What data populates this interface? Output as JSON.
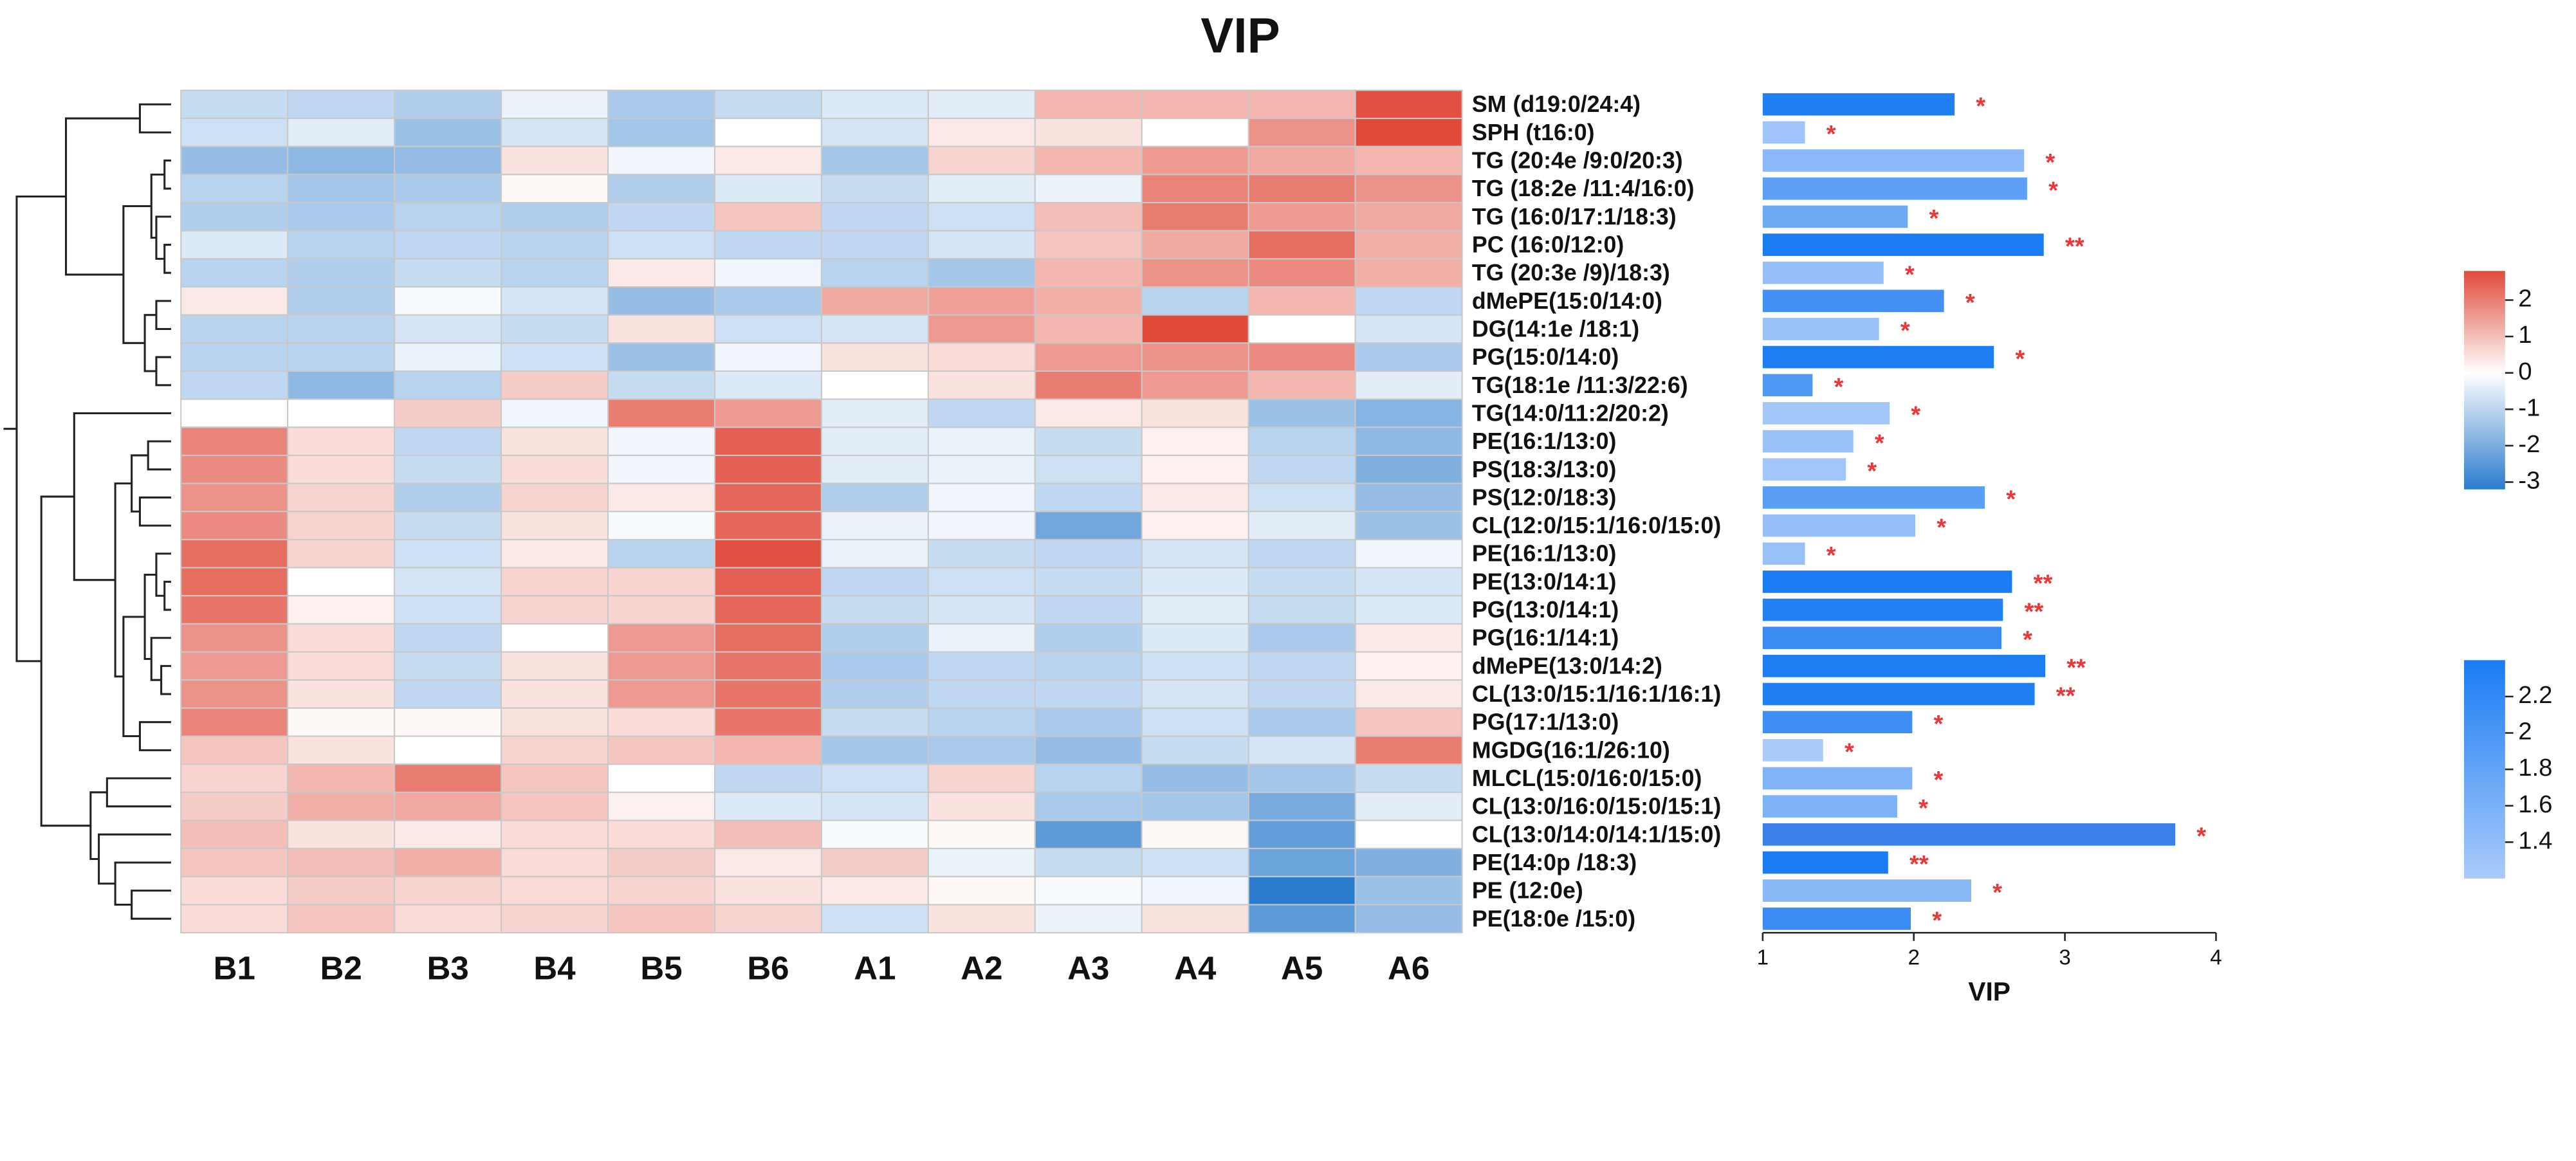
{
  "chart_data": [
    {
      "type": "heatmap",
      "title": "VIP",
      "columns": [
        "B1",
        "B2",
        "B3",
        "B4",
        "B5",
        "B6",
        "A1",
        "A2",
        "A3",
        "A4",
        "A5",
        "A6"
      ],
      "rows": [
        "SM (d19:0/24:4)",
        "SPH (t16:0)",
        "TG (20:4e /9:0/20:3)",
        "TG (18:2e /11:4/16:0)",
        "TG (16:0/17:1/18:3)",
        "PC (16:0/12:0)",
        "TG (20:3e /9)/18:3)",
        "dMePE(15:0/14:0)",
        "DG(14:1e /18:1)",
        "PG(15:0/14:0)",
        "TG(18:1e /11:3/22:6)",
        "TG(14:0/11:2/20:2)",
        "PE(16:1/13:0)",
        "PS(18:3/13:0)",
        "PS(12:0/18:3)",
        "CL(12:0/15:1/16:0/15:0)",
        "PE(16:1/13:0)",
        "PE(13:0/14:1)",
        "PG(13:0/14:1)",
        "PG(16:1/14:1)",
        "dMePE(13:0/14:2)",
        "CL(13:0/15:1/16:1/16:1)",
        "PG(17:1/13:0)",
        "MGDG(16:1/26:10)",
        "MLCL(15:0/16:0/15:0)",
        "CL(13:0/16:0/15:0/15:1)",
        "CL(13:0/14:0/14:1/15:0)",
        "PE(14:0p /18:3)",
        "PE (12:0e)",
        "PE(18:0e /15:0)"
      ],
      "values": [
        [
          -0.8,
          -0.9,
          -1.1,
          -0.3,
          -1.2,
          -0.8,
          -0.5,
          -0.4,
          1.0,
          1.0,
          1.0,
          2.4
        ],
        [
          -0.7,
          -0.4,
          -1.4,
          -0.6,
          -1.3,
          0,
          -0.6,
          0.3,
          0.4,
          0,
          1.5,
          2.5
        ],
        [
          -1.5,
          -1.6,
          -1.5,
          0.4,
          -0.2,
          0.3,
          -1.3,
          0.6,
          1.0,
          1.4,
          1.2,
          1.0
        ],
        [
          -1.0,
          -1.3,
          -1.2,
          0.1,
          -1.1,
          -0.5,
          -0.8,
          -0.4,
          -0.3,
          1.7,
          1.8,
          1.5
        ],
        [
          -1.1,
          -1.2,
          -1.0,
          -1.1,
          -0.9,
          0.8,
          -0.9,
          -0.7,
          0.9,
          1.8,
          1.4,
          1.2
        ],
        [
          -0.5,
          -1.0,
          -0.9,
          -1.0,
          -0.7,
          -0.9,
          -0.9,
          -0.6,
          0.8,
          1.2,
          2.0,
          1.1
        ],
        [
          -1.0,
          -1.1,
          -0.8,
          -1.0,
          0.3,
          -0.2,
          -1.0,
          -1.3,
          1.0,
          1.5,
          1.6,
          1.1
        ],
        [
          0.3,
          -1.1,
          -0.1,
          -0.6,
          -1.5,
          -1.2,
          1.2,
          1.3,
          1.1,
          -1.0,
          1.0,
          -0.9
        ],
        [
          -1.0,
          -1.0,
          -0.6,
          -0.8,
          0.4,
          -0.7,
          -0.6,
          1.4,
          1.0,
          2.5,
          0,
          -0.6
        ],
        [
          -1.0,
          -1.0,
          -0.3,
          -0.7,
          -1.4,
          -0.2,
          0.4,
          0.5,
          1.4,
          1.5,
          1.6,
          -1.2
        ],
        [
          -0.9,
          -1.6,
          -1.0,
          0.7,
          -0.8,
          -0.5,
          0,
          0.4,
          1.8,
          1.4,
          1.0,
          -0.4
        ],
        [
          0,
          0,
          0.7,
          -0.2,
          1.8,
          1.4,
          -0.4,
          -0.9,
          0.3,
          0.4,
          -1.4,
          -1.7
        ],
        [
          1.7,
          0.5,
          -0.9,
          0.4,
          -0.2,
          2.2,
          -0.4,
          -0.3,
          -0.8,
          0.2,
          -1.0,
          -1.6
        ],
        [
          1.6,
          0.5,
          -0.8,
          0.5,
          -0.2,
          2.2,
          -0.4,
          -0.3,
          -0.7,
          0.2,
          -0.9,
          -1.8
        ],
        [
          1.5,
          0.6,
          -1.1,
          0.6,
          0.3,
          2.1,
          -1.1,
          -0.2,
          -0.9,
          0.3,
          -0.7,
          -1.5
        ],
        [
          1.6,
          0.6,
          -0.8,
          0.4,
          -0.1,
          2.1,
          -0.3,
          -0.2,
          -2.0,
          0.2,
          -0.4,
          -1.4
        ],
        [
          2.0,
          0.6,
          -0.7,
          0.3,
          -1.0,
          2.4,
          -0.3,
          -0.8,
          -0.9,
          -0.6,
          -0.9,
          -0.2
        ],
        [
          2.0,
          0,
          -0.6,
          0.6,
          0.6,
          2.2,
          -0.9,
          -0.7,
          -0.8,
          -0.5,
          -0.8,
          -0.6
        ],
        [
          1.9,
          0.2,
          -0.7,
          0.6,
          0.6,
          2.1,
          -0.8,
          -0.6,
          -0.9,
          -0.4,
          -0.8,
          -0.5
        ],
        [
          1.5,
          0.5,
          -0.9,
          0,
          1.4,
          2.0,
          -1.1,
          -0.3,
          -1.1,
          -0.5,
          -1.2,
          0.3
        ],
        [
          1.4,
          0.5,
          -0.8,
          0.4,
          1.4,
          1.9,
          -1.2,
          -0.9,
          -1.0,
          -0.7,
          -0.9,
          0.2
        ],
        [
          1.5,
          0.4,
          -0.9,
          0.4,
          1.4,
          1.9,
          -1.1,
          -0.9,
          -0.9,
          -0.6,
          -0.9,
          0.3
        ],
        [
          1.7,
          0.1,
          0.1,
          0.4,
          0.5,
          1.9,
          -0.8,
          -1.0,
          -1.2,
          -0.7,
          -1.2,
          0.8
        ],
        [
          0.8,
          0.4,
          0,
          0.6,
          0.8,
          1.0,
          -1.3,
          -1.2,
          -1.5,
          -0.8,
          -0.6,
          1.8
        ],
        [
          0.6,
          1.0,
          1.8,
          0.8,
          0,
          -0.9,
          -0.7,
          0.6,
          -1.0,
          -1.5,
          -1.3,
          -0.8
        ],
        [
          0.7,
          1.1,
          1.2,
          0.8,
          0.2,
          -0.5,
          -0.6,
          0.4,
          -1.2,
          -1.3,
          -1.9,
          -0.4
        ],
        [
          0.9,
          0.4,
          0.3,
          0.5,
          0.5,
          0.9,
          -0.1,
          0.1,
          -2.3,
          0.1,
          -2.2,
          0
        ],
        [
          0.8,
          0.9,
          1.1,
          0.5,
          0.7,
          0.3,
          0.7,
          -0.3,
          -0.8,
          -0.7,
          -2.1,
          -1.8
        ],
        [
          0.5,
          0.7,
          0.6,
          0.5,
          0.6,
          0.4,
          0.3,
          0.1,
          -0.1,
          -0.2,
          -3.0,
          -1.4
        ],
        [
          0.5,
          0.8,
          0.5,
          0.6,
          0.8,
          0.6,
          -0.7,
          0.4,
          -0.3,
          0.4,
          -2.3,
          -1.5
        ]
      ],
      "zlim": [
        -3.2,
        2.8
      ],
      "zticks": [
        2,
        1,
        0,
        -1,
        -2,
        -3
      ],
      "colorscale": [
        "#2b7bcc",
        "#ffffff",
        "#e04a3a"
      ]
    },
    {
      "type": "bar",
      "orientation": "horizontal",
      "xlabel": "VIP",
      "values": [
        2.27,
        1.28,
        2.73,
        2.75,
        1.96,
        2.86,
        1.8,
        2.2,
        1.77,
        2.53,
        1.33,
        1.84,
        1.6,
        1.55,
        2.47,
        2.01,
        1.28,
        2.65,
        2.59,
        2.58,
        2.87,
        2.8,
        1.99,
        1.4,
        1.99,
        1.89,
        3.73,
        1.83,
        2.38,
        1.98
      ],
      "colors": [
        "#1f7ff3",
        "#9fc4f9",
        "#8ab8f8",
        "#5c9ff5",
        "#6ea9f6",
        "#1a7cf3",
        "#96bff8",
        "#4390f4",
        "#99c1f8",
        "#1d7ef3",
        "#4e98f4",
        "#a2c6f8",
        "#9bc2f8",
        "#a2c6f9",
        "#5a9ef5",
        "#98c0f8",
        "#99c1f8",
        "#1a7cf3",
        "#2381f3",
        "#3a8cf4",
        "#1d7ef3",
        "#2080f3",
        "#3f8ef4",
        "#a9cbf9",
        "#80b4f7",
        "#7db2f7",
        "#3b7fe8",
        "#1a7cf3",
        "#89b8f7",
        "#3a8bf4"
      ],
      "annotations": [
        "*",
        "*",
        "*",
        "*",
        "*",
        "**",
        "*",
        "*",
        "*",
        "*",
        "*",
        "*",
        "*",
        "*",
        "*",
        "*",
        "*",
        "**",
        "**",
        "*",
        "**",
        "**",
        "*",
        "*",
        "*",
        "*",
        "*",
        "**",
        "*",
        "*"
      ],
      "annotation_color": "#e8383a",
      "xlim": [
        1,
        4
      ],
      "xticks": [
        1,
        2,
        3,
        4
      ],
      "colorbar_lim": [
        1.2,
        2.4
      ],
      "colorbar_ticks": [
        2.2,
        2,
        1.8,
        1.6,
        1.4
      ],
      "colorbar_colors": [
        "#1a7cf3",
        "#aacbf9"
      ]
    }
  ]
}
